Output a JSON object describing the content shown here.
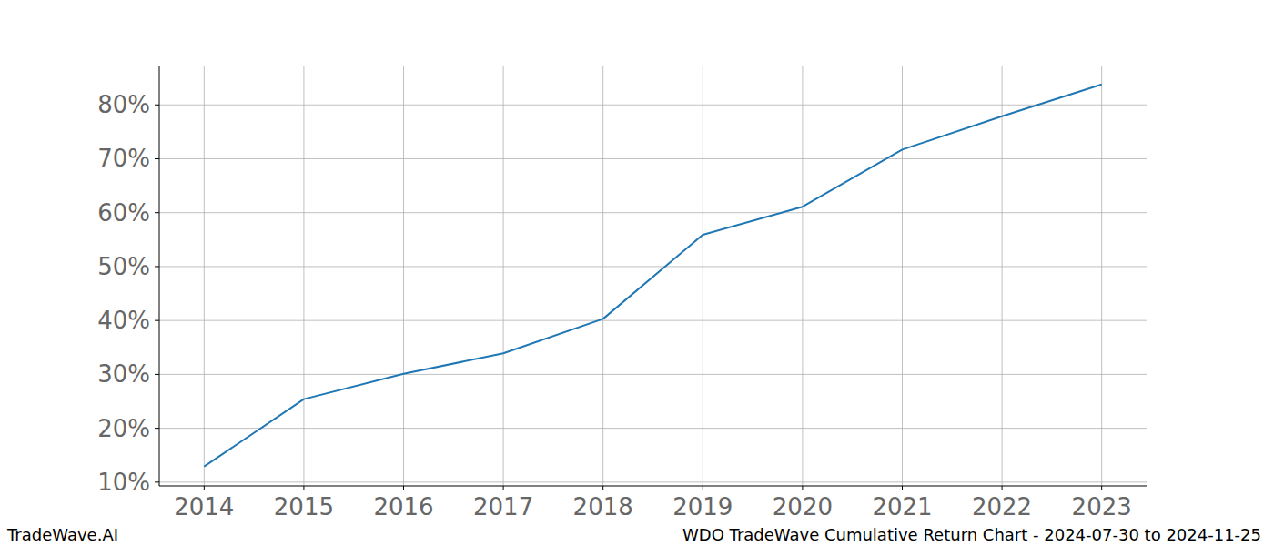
{
  "chart_data": {
    "type": "line",
    "title": "WDO TradeWave Cumulative Return Chart - 2024-07-30 to 2024-11-25",
    "annotations": [
      "TradeWave.AI"
    ],
    "x": [
      2014,
      2015,
      2016,
      2017,
      2018,
      2019,
      2020,
      2021,
      2022,
      2023
    ],
    "values": [
      12.9,
      25.4,
      30.1,
      33.9,
      40.3,
      55.9,
      61.1,
      71.7,
      77.9,
      83.8
    ],
    "color": "#1f77b4",
    "xlim": [
      2013.55,
      2023.45
    ],
    "xticks": [
      2014,
      2015,
      2016,
      2017,
      2018,
      2019,
      2020,
      2021,
      2022,
      2023
    ],
    "ylim": [
      9.3,
      87.3
    ],
    "yticks": [
      {
        "value": 10,
        "label": "10%"
      },
      {
        "value": 20,
        "label": "20%"
      },
      {
        "value": 30,
        "label": "30%"
      },
      {
        "value": 40,
        "label": "40%"
      },
      {
        "value": 50,
        "label": "50%"
      },
      {
        "value": 60,
        "label": "60%"
      },
      {
        "value": 70,
        "label": "70%"
      },
      {
        "value": 80,
        "label": "80%"
      }
    ],
    "grid": true
  }
}
